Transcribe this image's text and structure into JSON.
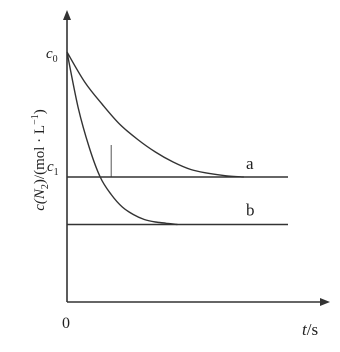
{
  "chart_data": {
    "type": "line",
    "ylabel_prefix": "c(N",
    "ylabel_sub": "2",
    "ylabel_suffix": ")/(mol · L",
    "ylabel_sup": "−1",
    "ylabel_close": ")",
    "xlabel_var": "t",
    "xlabel_unit": "/s",
    "origin_label": "0",
    "y_tick_top_main": "c",
    "y_tick_top_sub": "0",
    "y_tick_mid_main": "c",
    "y_tick_mid_sub": "1",
    "c0": 1.0,
    "c1": 0.5,
    "b_final": 0.31,
    "xlim": [
      0,
      10
    ],
    "ylim": [
      0,
      1.2
    ],
    "series": [
      {
        "name": "a",
        "x": [
          0,
          0.8,
          1.6,
          2.4,
          3.2,
          4.0,
          4.8,
          5.6,
          6.4,
          7.2,
          8.0,
          10
        ],
        "y": [
          1.0,
          0.88,
          0.79,
          0.71,
          0.65,
          0.6,
          0.56,
          0.53,
          0.515,
          0.505,
          0.5,
          0.5
        ]
      },
      {
        "name": "b",
        "x": [
          0,
          0.5,
          1.0,
          1.5,
          2.0,
          2.5,
          3.0,
          3.5,
          4.0,
          4.5,
          5.0,
          10
        ],
        "y": [
          1.0,
          0.78,
          0.62,
          0.5,
          0.43,
          0.38,
          0.35,
          0.33,
          0.32,
          0.315,
          0.31,
          0.31
        ]
      }
    ]
  }
}
